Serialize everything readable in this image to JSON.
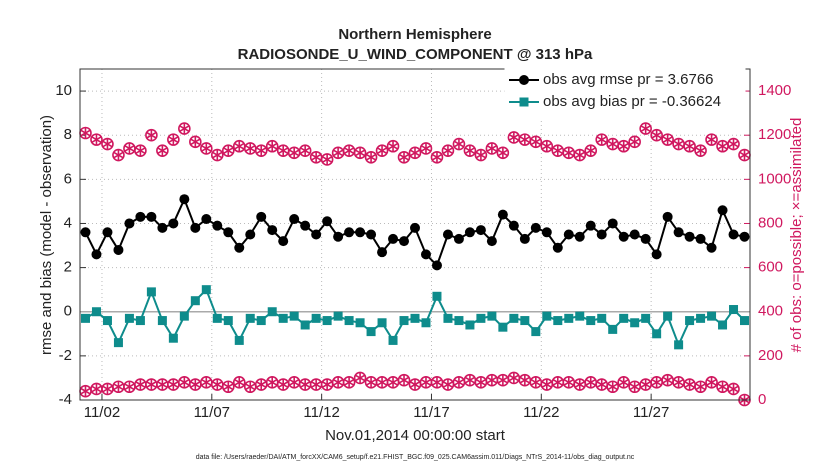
{
  "chart_data": {
    "type": "line",
    "title": "Northern Hemisphere",
    "subtitle": "RADIOSONDE_U_WIND_COMPONENT @ 313 hPa",
    "x_label": "Nov.01,2014 00:00:00 start",
    "y_label": "rmse and bias (model - observation)",
    "y2_label": "# of obs: o=possible; ×=assimilated",
    "footnote": "data file: /Users/raeder/DAI/ATM_forcXX/CAM6_setup/f.e21.FHIST_BGC.f09_025.CAM6assim.011/Diags_NTrS_2014-11/obs_diag_output.nc",
    "xlim": [
      1,
      31.5
    ],
    "xticks": [
      {
        "value": 2,
        "label": "11/02"
      },
      {
        "value": 7,
        "label": "11/07"
      },
      {
        "value": 12,
        "label": "11/12"
      },
      {
        "value": 17,
        "label": "11/17"
      },
      {
        "value": 22,
        "label": "11/22"
      },
      {
        "value": 27,
        "label": "11/27"
      }
    ],
    "ylim": [
      -4,
      11
    ],
    "yticks": [
      -4,
      -2,
      0,
      2,
      4,
      6,
      8,
      10
    ],
    "y2lim": [
      0,
      1500
    ],
    "y2ticks": [
      0,
      200,
      400,
      600,
      800,
      1000,
      1200,
      1400
    ],
    "y2_color": "#d0185f",
    "grid": true,
    "legend": "upper right",
    "x": [
      1.25,
      1.75,
      2.25,
      2.75,
      3.25,
      3.75,
      4.25,
      4.75,
      5.25,
      5.75,
      6.25,
      6.75,
      7.25,
      7.75,
      8.25,
      8.75,
      9.25,
      9.75,
      10.25,
      10.75,
      11.25,
      11.75,
      12.25,
      12.75,
      13.25,
      13.75,
      14.25,
      14.75,
      15.25,
      15.75,
      16.25,
      16.75,
      17.25,
      17.75,
      18.25,
      18.75,
      19.25,
      19.75,
      20.25,
      20.75,
      21.25,
      21.75,
      22.25,
      22.75,
      23.25,
      23.75,
      24.25,
      24.75,
      25.25,
      25.75,
      26.25,
      26.75,
      27.25,
      27.75,
      28.25,
      28.75,
      29.25,
      29.75,
      30.25,
      30.75,
      31.25
    ],
    "series": [
      {
        "name": "obs avg rmse pr = 3.6766",
        "color": "#000000",
        "marker": "circle",
        "line": true,
        "values": [
          3.6,
          2.6,
          3.6,
          2.8,
          4.0,
          4.3,
          4.3,
          3.8,
          4.0,
          5.1,
          3.8,
          4.2,
          3.9,
          3.6,
          2.9,
          3.5,
          4.3,
          3.7,
          3.2,
          4.2,
          3.9,
          3.5,
          4.1,
          3.4,
          3.6,
          3.6,
          3.5,
          2.7,
          3.3,
          3.2,
          3.8,
          2.6,
          2.1,
          3.5,
          3.3,
          3.6,
          3.7,
          3.2,
          4.4,
          3.9,
          3.3,
          3.8,
          3.6,
          2.9,
          3.5,
          3.4,
          3.9,
          3.5,
          4.0,
          3.4,
          3.5,
          3.3,
          2.6,
          4.3,
          3.6,
          3.4,
          3.3,
          2.9,
          4.6,
          3.5,
          3.4
        ]
      },
      {
        "name": "obs avg bias pr = -0.36624",
        "color": "#0e8c8c",
        "marker": "square",
        "line": true,
        "values": [
          -0.3,
          0.0,
          -0.4,
          -1.4,
          -0.3,
          -0.4,
          0.9,
          -0.4,
          -1.2,
          -0.2,
          0.5,
          1.0,
          -0.3,
          -0.4,
          -1.3,
          -0.3,
          -0.4,
          0.0,
          -0.3,
          -0.2,
          -0.6,
          -0.3,
          -0.4,
          -0.2,
          -0.4,
          -0.5,
          -0.9,
          -0.5,
          -1.3,
          -0.4,
          -0.3,
          -0.5,
          0.7,
          -0.3,
          -0.4,
          -0.6,
          -0.3,
          -0.2,
          -0.7,
          -0.3,
          -0.4,
          -0.9,
          -0.2,
          -0.4,
          -0.3,
          -0.2,
          -0.4,
          -0.3,
          -0.8,
          -0.3,
          -0.5,
          -0.3,
          -1.0,
          -0.2,
          -1.5,
          -0.4,
          -0.3,
          -0.2,
          -0.6,
          0.1,
          -0.4
        ]
      },
      {
        "color": "#d0185f",
        "marker": "circle-star",
        "line": false,
        "axis": "y2",
        "values": [
          1210,
          1180,
          1160,
          1110,
          1140,
          1130,
          1200,
          1130,
          1180,
          1230,
          1170,
          1140,
          1110,
          1130,
          1150,
          1140,
          1130,
          1150,
          1130,
          1120,
          1130,
          1100,
          1090,
          1120,
          1130,
          1120,
          1100,
          1130,
          1150,
          1100,
          1120,
          1140,
          1100,
          1130,
          1160,
          1130,
          1110,
          1140,
          1120,
          1190,
          1180,
          1170,
          1150,
          1130,
          1120,
          1110,
          1130,
          1180,
          1160,
          1150,
          1170,
          1230,
          1200,
          1180,
          1160,
          1150,
          1130,
          1180,
          1150,
          1160,
          1110
        ]
      },
      {
        "color": "#d0185f",
        "marker": "circle-star",
        "line": false,
        "axis": "y2",
        "values": [
          40,
          50,
          50,
          60,
          60,
          70,
          70,
          70,
          70,
          80,
          70,
          80,
          70,
          60,
          80,
          60,
          70,
          80,
          70,
          80,
          70,
          70,
          70,
          80,
          80,
          100,
          80,
          80,
          80,
          90,
          70,
          80,
          80,
          70,
          80,
          90,
          80,
          90,
          90,
          100,
          90,
          80,
          70,
          80,
          80,
          70,
          80,
          70,
          60,
          80,
          60,
          70,
          80,
          90,
          80,
          70,
          60,
          80,
          60,
          50,
          0
        ]
      }
    ]
  }
}
